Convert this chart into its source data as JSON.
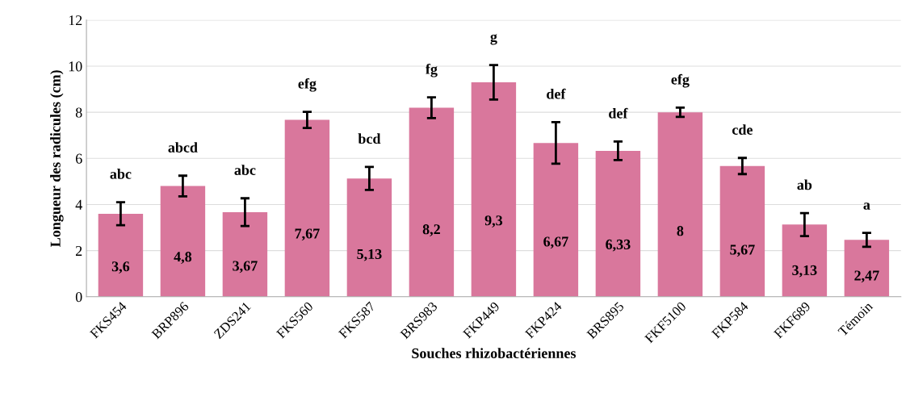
{
  "chart_data": {
    "type": "bar",
    "xlabel": "Souches rhizobactériennes",
    "ylabel": "Longueur des radicules (cm)",
    "categories": [
      "FKS454",
      "BRP896",
      "ZDS241",
      "FKS560",
      "FKS587",
      "BRS983",
      "FKP449",
      "FKP424",
      "BRS895",
      "FKF5100",
      "FKP584",
      "FKF689",
      "Témoin"
    ],
    "values": [
      3.6,
      4.8,
      3.67,
      7.67,
      5.13,
      8.2,
      9.3,
      6.67,
      6.33,
      8,
      5.67,
      3.13,
      2.47
    ],
    "value_labels": [
      "3,6",
      "4,8",
      "3,67",
      "7,67",
      "5,13",
      "8,2",
      "9,3",
      "6,67",
      "6,33",
      "8",
      "5,67",
      "3,13",
      "2,47"
    ],
    "errors": [
      0.5,
      0.45,
      0.6,
      0.35,
      0.5,
      0.45,
      0.75,
      0.9,
      0.4,
      0.2,
      0.35,
      0.5,
      0.3
    ],
    "color": "#d9779c",
    "ylim": [
      0,
      12
    ],
    "yticks": [
      0,
      2,
      4,
      6,
      8,
      10,
      12
    ],
    "grid": "y",
    "annotations": [
      "abc",
      "abcd",
      "abc",
      "efg",
      "bcd",
      "fg",
      "g",
      "def",
      "def",
      "efg",
      "cde",
      "ab",
      "a"
    ]
  }
}
